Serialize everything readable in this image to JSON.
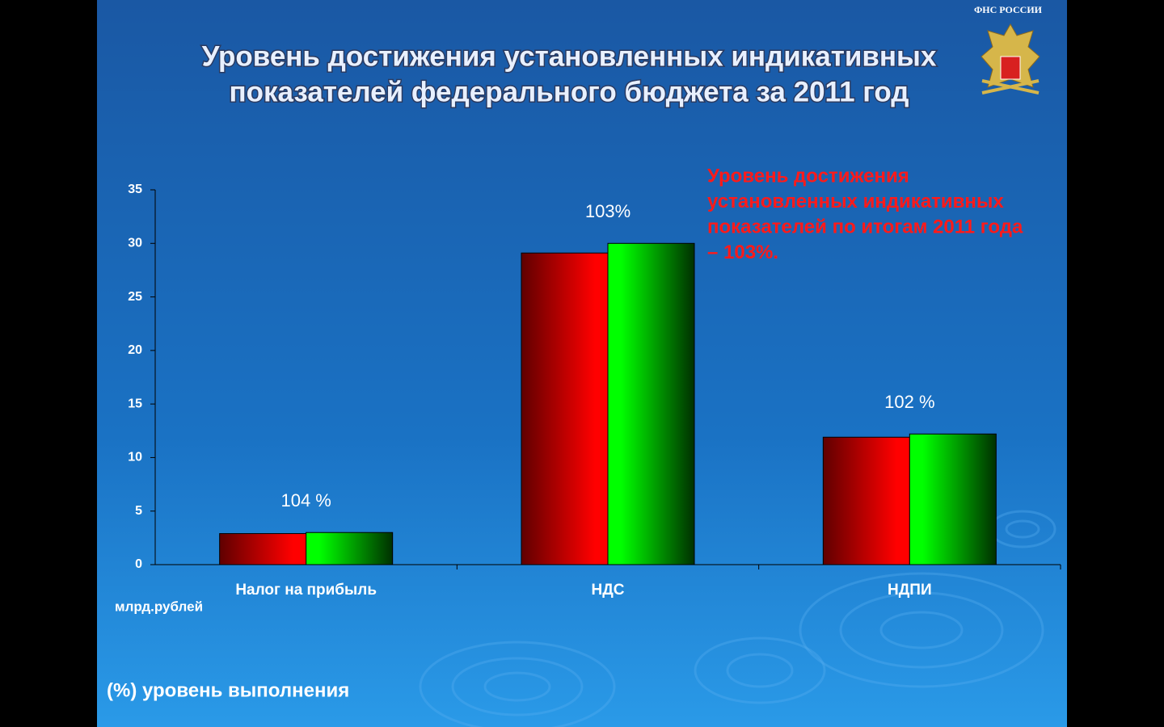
{
  "chart_data": {
    "type": "bar",
    "title": [
      "Уровень достижения установленных индикативных",
      "показателей федерального бюджета за 2011 год"
    ],
    "logo_text": "ФНС РОССИИ",
    "categories": [
      "Налог на прибыль",
      "НДС",
      "НДПИ"
    ],
    "category_labels": [
      "104 %",
      "103%",
      "102 %"
    ],
    "series": [
      {
        "color": "#ff0000",
        "values": [
          2.9,
          29.1,
          11.9
        ]
      },
      {
        "color": "#00ff00",
        "values": [
          3.0,
          30.0,
          12.2
        ]
      }
    ],
    "y_unit_label": "млрд.рублей",
    "ylim": [
      0,
      35
    ],
    "yticks": [
      0,
      5,
      10,
      15,
      20,
      25,
      30,
      35
    ],
    "annotation": [
      "Уровень достижения",
      "установленных индикативных",
      "показателей по итогам 2011 года",
      "– 103%."
    ],
    "footnote": "(%) уровень выполнения"
  }
}
